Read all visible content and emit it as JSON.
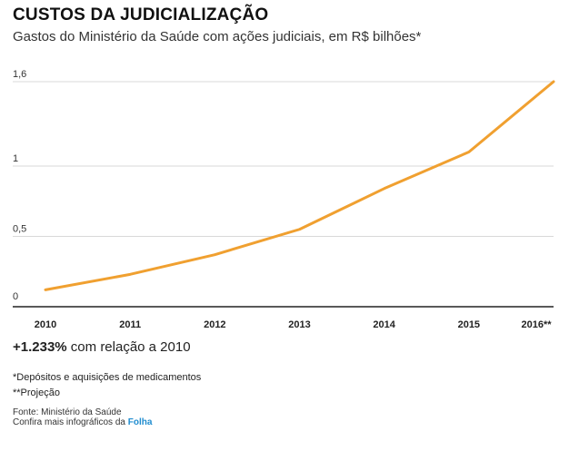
{
  "header": {
    "title": "CUSTOS DA JUDICIALIZAÇÃO",
    "subtitle": "Gastos do Ministério da Saúde com ações judiciais, em R$ bilhões*"
  },
  "chart_data": {
    "type": "line",
    "x": [
      "2010",
      "2011",
      "2012",
      "2013",
      "2014",
      "2015",
      "2016**"
    ],
    "series": [
      {
        "values": [
          0.12,
          0.23,
          0.37,
          0.55,
          0.84,
          1.1,
          1.6
        ]
      }
    ],
    "yticks": [
      {
        "value": 0,
        "label": "0"
      },
      {
        "value": 0.5,
        "label": "0,5"
      },
      {
        "value": 1,
        "label": "1"
      },
      {
        "value": 1.6,
        "label": "1,6"
      }
    ],
    "ylim": [
      0,
      1.6
    ],
    "grid": true,
    "line_color": "#f0a030",
    "grid_color": "#d8d8d8"
  },
  "highlight": {
    "value": "+1.233%",
    "text": " com relação a 2010"
  },
  "notes": {
    "note1": "*Depósitos e aquisições de medicamentos",
    "note2": "**Projeção",
    "source": "Fonte: Ministério da Saúde",
    "more_prefix": "Confira mais infográficos da ",
    "brand": "Folha"
  }
}
